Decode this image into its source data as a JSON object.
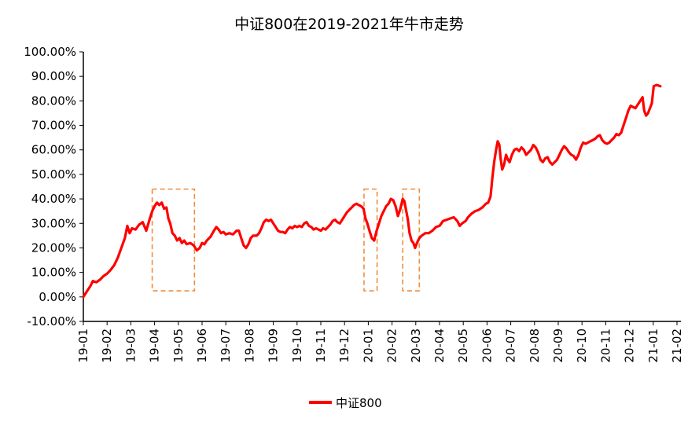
{
  "chart_data": {
    "type": "line",
    "title": "中证800在2019-2021年牛市走势",
    "xlabel": "",
    "ylabel": "",
    "ylim": [
      -10,
      100
    ],
    "y_ticks": [
      "100.00%",
      "90.00%",
      "80.00%",
      "70.00%",
      "60.00%",
      "50.00%",
      "40.00%",
      "30.00%",
      "20.00%",
      "10.00%",
      "0.00%",
      "-10.00%"
    ],
    "x_ticks": [
      "19-01",
      "19-02",
      "19-03",
      "19-04",
      "19-05",
      "19-06",
      "19-07",
      "19-08",
      "19-09",
      "19-10",
      "19-11",
      "19-12",
      "20-01",
      "20-02",
      "20-03",
      "20-04",
      "20-05",
      "20-06",
      "20-07",
      "20-08",
      "20-09",
      "20-10",
      "20-11",
      "20-12",
      "21-01",
      "21-02"
    ],
    "grid": false,
    "legend": "bottom",
    "series": [
      {
        "name": "中证800",
        "color": "#ff0000",
        "points": [
          [
            0.0,
            0
          ],
          [
            0.1,
            1.5
          ],
          [
            0.2,
            3
          ],
          [
            0.3,
            4.5
          ],
          [
            0.4,
            6.5
          ],
          [
            0.55,
            6
          ],
          [
            0.7,
            7
          ],
          [
            0.85,
            8.5
          ],
          [
            1.0,
            9.5
          ],
          [
            1.15,
            11
          ],
          [
            1.3,
            13
          ],
          [
            1.45,
            16
          ],
          [
            1.6,
            20
          ],
          [
            1.75,
            24
          ],
          [
            1.85,
            29
          ],
          [
            1.95,
            26
          ],
          [
            2.05,
            28
          ],
          [
            2.2,
            27.5
          ],
          [
            2.35,
            29.5
          ],
          [
            2.5,
            30.5
          ],
          [
            2.65,
            27
          ],
          [
            2.8,
            32
          ],
          [
            2.9,
            35
          ],
          [
            3.0,
            37
          ],
          [
            3.1,
            38.5
          ],
          [
            3.2,
            37.5
          ],
          [
            3.3,
            38.5
          ],
          [
            3.4,
            36
          ],
          [
            3.5,
            36.5
          ],
          [
            3.58,
            32
          ],
          [
            3.66,
            30
          ],
          [
            3.75,
            26
          ],
          [
            3.85,
            25
          ],
          [
            3.95,
            23
          ],
          [
            4.05,
            24
          ],
          [
            4.15,
            22
          ],
          [
            4.25,
            23
          ],
          [
            4.35,
            21.5
          ],
          [
            4.5,
            22
          ],
          [
            4.65,
            21
          ],
          [
            4.78,
            19
          ],
          [
            4.9,
            20
          ],
          [
            5.0,
            22
          ],
          [
            5.1,
            21.5
          ],
          [
            5.2,
            23
          ],
          [
            5.35,
            24.5
          ],
          [
            5.5,
            27
          ],
          [
            5.6,
            28.5
          ],
          [
            5.7,
            27.5
          ],
          [
            5.8,
            26
          ],
          [
            5.9,
            26.5
          ],
          [
            6.0,
            25.5
          ],
          [
            6.15,
            26
          ],
          [
            6.3,
            25.5
          ],
          [
            6.45,
            27
          ],
          [
            6.55,
            27
          ],
          [
            6.65,
            24
          ],
          [
            6.75,
            21
          ],
          [
            6.85,
            20
          ],
          [
            6.95,
            21.5
          ],
          [
            7.05,
            24
          ],
          [
            7.15,
            25
          ],
          [
            7.3,
            25
          ],
          [
            7.4,
            26
          ],
          [
            7.5,
            28
          ],
          [
            7.6,
            30.5
          ],
          [
            7.7,
            31.5
          ],
          [
            7.8,
            31
          ],
          [
            7.9,
            31.5
          ],
          [
            8.0,
            30
          ],
          [
            8.1,
            28.5
          ],
          [
            8.2,
            27
          ],
          [
            8.3,
            26.5
          ],
          [
            8.4,
            26.5
          ],
          [
            8.5,
            26
          ],
          [
            8.6,
            27.5
          ],
          [
            8.7,
            28.5
          ],
          [
            8.8,
            28
          ],
          [
            8.9,
            29
          ],
          [
            9.0,
            28.5
          ],
          [
            9.1,
            29
          ],
          [
            9.2,
            28.5
          ],
          [
            9.3,
            30
          ],
          [
            9.4,
            30.5
          ],
          [
            9.5,
            29
          ],
          [
            9.6,
            28.5
          ],
          [
            9.7,
            27.5
          ],
          [
            9.8,
            28
          ],
          [
            9.9,
            27.5
          ],
          [
            10.0,
            27
          ],
          [
            10.1,
            28
          ],
          [
            10.2,
            27.5
          ],
          [
            10.3,
            28.5
          ],
          [
            10.4,
            29.5
          ],
          [
            10.5,
            31
          ],
          [
            10.6,
            31.5
          ],
          [
            10.7,
            30.5
          ],
          [
            10.8,
            30
          ],
          [
            10.9,
            31.5
          ],
          [
            11.0,
            33
          ],
          [
            11.1,
            34.5
          ],
          [
            11.2,
            35.5
          ],
          [
            11.3,
            36.5
          ],
          [
            11.4,
            37.5
          ],
          [
            11.5,
            38
          ],
          [
            11.6,
            37.5
          ],
          [
            11.7,
            37
          ],
          [
            11.8,
            36
          ],
          [
            11.88,
            32
          ],
          [
            11.96,
            30
          ],
          [
            12.05,
            27
          ],
          [
            12.15,
            24
          ],
          [
            12.25,
            23
          ],
          [
            12.35,
            27
          ],
          [
            12.45,
            30
          ],
          [
            12.55,
            33
          ],
          [
            12.65,
            35
          ],
          [
            12.75,
            37
          ],
          [
            12.85,
            38
          ],
          [
            12.95,
            40
          ],
          [
            13.05,
            39.5
          ],
          [
            13.15,
            37
          ],
          [
            13.25,
            33
          ],
          [
            13.35,
            36
          ],
          [
            13.45,
            40
          ],
          [
            13.52,
            39
          ],
          [
            13.6,
            35
          ],
          [
            13.66,
            32
          ],
          [
            13.74,
            26
          ],
          [
            13.82,
            23
          ],
          [
            13.9,
            22
          ],
          [
            13.97,
            20
          ],
          [
            14.05,
            22
          ],
          [
            14.15,
            24
          ],
          [
            14.25,
            25
          ],
          [
            14.4,
            26
          ],
          [
            14.55,
            26
          ],
          [
            14.7,
            27
          ],
          [
            14.85,
            28.5
          ],
          [
            15.0,
            29
          ],
          [
            15.15,
            31
          ],
          [
            15.3,
            31.5
          ],
          [
            15.45,
            32
          ],
          [
            15.6,
            32.5
          ],
          [
            15.75,
            31
          ],
          [
            15.85,
            29
          ],
          [
            15.95,
            30
          ],
          [
            16.1,
            31
          ],
          [
            16.2,
            32.5
          ],
          [
            16.35,
            34
          ],
          [
            16.5,
            35
          ],
          [
            16.65,
            35.5
          ],
          [
            16.8,
            36.5
          ],
          [
            16.95,
            38
          ],
          [
            17.05,
            38.5
          ],
          [
            17.15,
            41
          ],
          [
            17.22,
            48
          ],
          [
            17.3,
            55
          ],
          [
            17.38,
            60
          ],
          [
            17.45,
            63.5
          ],
          [
            17.52,
            62
          ],
          [
            17.58,
            56
          ],
          [
            17.64,
            52
          ],
          [
            17.72,
            54
          ],
          [
            17.8,
            58
          ],
          [
            17.88,
            56
          ],
          [
            17.95,
            55
          ],
          [
            18.05,
            58
          ],
          [
            18.15,
            60
          ],
          [
            18.25,
            60.5
          ],
          [
            18.35,
            59.5
          ],
          [
            18.45,
            61
          ],
          [
            18.55,
            60
          ],
          [
            18.65,
            58
          ],
          [
            18.75,
            59
          ],
          [
            18.85,
            60
          ],
          [
            18.95,
            62
          ],
          [
            19.05,
            61
          ],
          [
            19.15,
            59
          ],
          [
            19.25,
            56
          ],
          [
            19.35,
            55
          ],
          [
            19.45,
            56.5
          ],
          [
            19.55,
            57
          ],
          [
            19.65,
            55
          ],
          [
            19.75,
            54
          ],
          [
            19.85,
            55
          ],
          [
            19.95,
            56
          ],
          [
            20.05,
            58
          ],
          [
            20.15,
            60
          ],
          [
            20.25,
            61.5
          ],
          [
            20.35,
            60.5
          ],
          [
            20.45,
            59
          ],
          [
            20.55,
            58
          ],
          [
            20.65,
            57.5
          ],
          [
            20.75,
            56
          ],
          [
            20.85,
            58
          ],
          [
            20.95,
            61
          ],
          [
            21.05,
            63
          ],
          [
            21.15,
            62.5
          ],
          [
            21.25,
            63
          ],
          [
            21.35,
            63.5
          ],
          [
            21.45,
            64
          ],
          [
            21.55,
            64.5
          ],
          [
            21.65,
            65.5
          ],
          [
            21.75,
            66
          ],
          [
            21.85,
            64
          ],
          [
            21.95,
            63
          ],
          [
            22.05,
            62.5
          ],
          [
            22.15,
            63
          ],
          [
            22.25,
            64
          ],
          [
            22.35,
            65
          ],
          [
            22.45,
            66.5
          ],
          [
            22.55,
            66
          ],
          [
            22.65,
            67
          ],
          [
            22.75,
            70
          ],
          [
            22.85,
            73
          ],
          [
            22.95,
            76
          ],
          [
            23.05,
            78
          ],
          [
            23.15,
            77.5
          ],
          [
            23.25,
            77
          ],
          [
            23.35,
            78.5
          ],
          [
            23.45,
            80
          ],
          [
            23.55,
            81.5
          ],
          [
            23.62,
            76
          ],
          [
            23.7,
            74
          ],
          [
            23.78,
            75
          ],
          [
            23.86,
            77
          ],
          [
            23.94,
            79
          ],
          [
            24.02,
            86
          ],
          [
            24.15,
            86.5
          ],
          [
            24.3,
            86
          ]
        ]
      }
    ],
    "highlight_boxes": [
      {
        "x_from": 2.9,
        "x_to": 4.68,
        "y_from": 2.5,
        "y_to": 44
      },
      {
        "x_from": 11.82,
        "x_to": 12.37,
        "y_from": 2.5,
        "y_to": 44
      },
      {
        "x_from": 13.45,
        "x_to": 14.15,
        "y_from": 2.5,
        "y_to": 44
      }
    ],
    "highlight_color": "#f08c3c"
  }
}
